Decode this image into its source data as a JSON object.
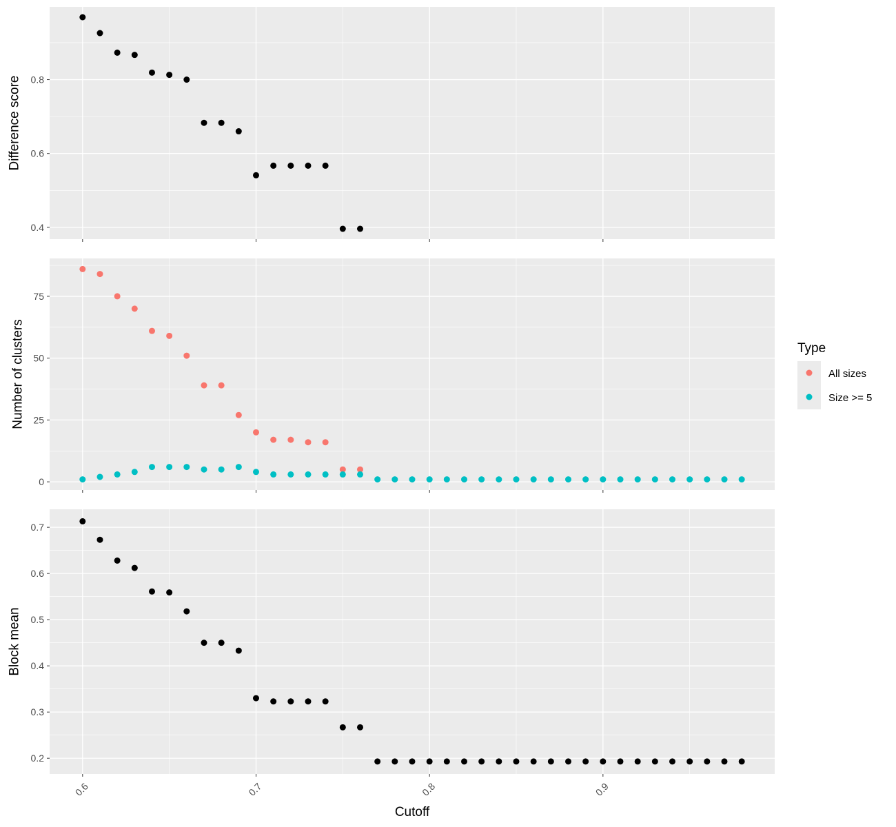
{
  "chart_data": [
    {
      "type": "scatter",
      "panel": "top",
      "ylabel": "Difference score",
      "xlabel": "",
      "xlim": [
        0.581,
        0.999
      ],
      "ylim": [
        0.368,
        0.997
      ],
      "yticks": [
        0.4,
        0.6,
        0.8
      ],
      "ytick_labels": [
        "0.4",
        "0.6",
        "0.8"
      ],
      "xticks": [
        0.6,
        0.7,
        0.8,
        0.9
      ],
      "grid": true,
      "series": [
        {
          "color": "#000000",
          "x": [
            0.6,
            0.61,
            0.62,
            0.63,
            0.64,
            0.65,
            0.66,
            0.67,
            0.68,
            0.69,
            0.7,
            0.71,
            0.72,
            0.73,
            0.74,
            0.75,
            0.76
          ],
          "y": [
            0.969,
            0.926,
            0.873,
            0.867,
            0.819,
            0.813,
            0.8,
            0.683,
            0.683,
            0.66,
            0.541,
            0.567,
            0.567,
            0.567,
            0.567,
            0.396,
            0.396
          ]
        }
      ]
    },
    {
      "type": "scatter",
      "panel": "middle",
      "ylabel": "Number of clusters",
      "xlabel": "",
      "xlim": [
        0.581,
        0.999
      ],
      "ylim": [
        -3.3,
        90.3
      ],
      "yticks": [
        0,
        25,
        50,
        75
      ],
      "ytick_labels": [
        "0",
        "25",
        "50",
        "75"
      ],
      "xticks": [
        0.6,
        0.7,
        0.8,
        0.9
      ],
      "grid": true,
      "legend": {
        "title": "Type",
        "position": "right"
      },
      "series": [
        {
          "name": "All sizes",
          "color": "#F8766D",
          "x": [
            0.6,
            0.61,
            0.62,
            0.63,
            0.64,
            0.65,
            0.66,
            0.67,
            0.68,
            0.69,
            0.7,
            0.71,
            0.72,
            0.73,
            0.74,
            0.75,
            0.76
          ],
          "y": [
            86,
            84,
            75,
            70,
            61,
            59,
            51,
            39,
            39,
            27,
            20,
            17,
            17,
            16,
            16,
            5,
            5
          ]
        },
        {
          "name": "Size >= 5",
          "color": "#00BFC4",
          "x": [
            0.6,
            0.61,
            0.62,
            0.63,
            0.64,
            0.65,
            0.66,
            0.67,
            0.68,
            0.69,
            0.7,
            0.71,
            0.72,
            0.73,
            0.74,
            0.75,
            0.76,
            0.77,
            0.78,
            0.79,
            0.8,
            0.81,
            0.82,
            0.83,
            0.84,
            0.85,
            0.86,
            0.87,
            0.88,
            0.89,
            0.9,
            0.91,
            0.92,
            0.93,
            0.94,
            0.95,
            0.96,
            0.97,
            0.98
          ],
          "y": [
            1,
            2,
            3,
            4,
            6,
            6,
            6,
            5,
            5,
            6,
            4,
            3,
            3,
            3,
            3,
            3,
            3,
            1,
            1,
            1,
            1,
            1,
            1,
            1,
            1,
            1,
            1,
            1,
            1,
            1,
            1,
            1,
            1,
            1,
            1,
            1,
            1,
            1,
            1
          ]
        }
      ]
    },
    {
      "type": "scatter",
      "panel": "bottom",
      "ylabel": "Block mean",
      "xlabel": "Cutoff",
      "xlim": [
        0.581,
        0.999
      ],
      "ylim": [
        0.166,
        0.739
      ],
      "yticks": [
        0.2,
        0.3,
        0.4,
        0.5,
        0.6,
        0.7
      ],
      "ytick_labels": [
        "0.2",
        "0.3",
        "0.4",
        "0.5",
        "0.6",
        "0.7"
      ],
      "xticks": [
        0.6,
        0.7,
        0.8,
        0.9
      ],
      "xtick_labels": [
        "0.6",
        "0.7",
        "0.8",
        "0.9"
      ],
      "grid": true,
      "series": [
        {
          "color": "#000000",
          "x": [
            0.6,
            0.61,
            0.62,
            0.63,
            0.64,
            0.65,
            0.66,
            0.67,
            0.68,
            0.69,
            0.7,
            0.71,
            0.72,
            0.73,
            0.74,
            0.75,
            0.76,
            0.77,
            0.78,
            0.79,
            0.8,
            0.81,
            0.82,
            0.83,
            0.84,
            0.85,
            0.86,
            0.87,
            0.88,
            0.89,
            0.9,
            0.91,
            0.92,
            0.93,
            0.94,
            0.95,
            0.96,
            0.97,
            0.98
          ],
          "y": [
            0.713,
            0.673,
            0.628,
            0.612,
            0.561,
            0.559,
            0.518,
            0.45,
            0.45,
            0.433,
            0.33,
            0.323,
            0.323,
            0.323,
            0.323,
            0.267,
            0.267,
            0.193,
            0.193,
            0.193,
            0.193,
            0.193,
            0.193,
            0.193,
            0.193,
            0.193,
            0.193,
            0.193,
            0.193,
            0.193,
            0.193,
            0.193,
            0.193,
            0.193,
            0.193,
            0.193,
            0.193,
            0.193,
            0.193
          ]
        }
      ]
    }
  ],
  "legend": {
    "title": "Type",
    "items": [
      {
        "label": "All sizes",
        "color": "#F8766D"
      },
      {
        "label": "Size >= 5",
        "color": "#00BFC4"
      }
    ]
  },
  "colors": {
    "panel_background": "#EBEBEB",
    "grid_major": "#FFFFFF",
    "tick_label": "#4D4D4D"
  }
}
